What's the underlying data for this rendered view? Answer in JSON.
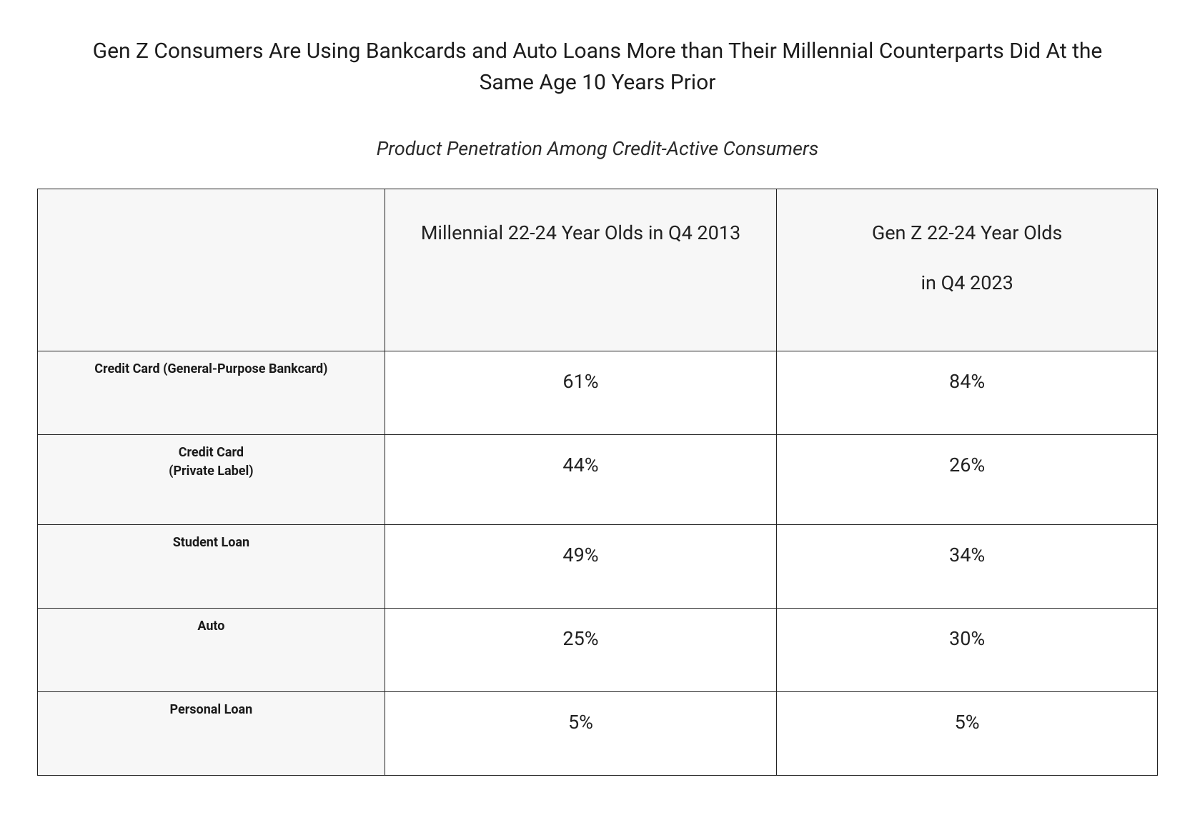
{
  "title": "Gen Z Consumers Are Using Bankcards and Auto Loans More than Their Millennial Counterparts Did At the Same Age 10 Years Prior",
  "subtitle": "Product Penetration Among Credit-Active Consumers",
  "table": {
    "type": "table",
    "background_color": "#ffffff",
    "header_bg": "#f7f7f7",
    "rowlabel_bg": "#f7f7f7",
    "border_color": "#222222",
    "title_fontsize": 30,
    "subtitle_fontsize": 27,
    "header_fontsize": 27,
    "rowlabel_fontsize": 18,
    "cell_fontsize": 27,
    "text_color": "#1f1f1f",
    "column_widths_pct": [
      31,
      35,
      34
    ],
    "columns": [
      "",
      "Millennial 22-24 Year Olds in Q4 2013",
      "Gen Z 22-24 Year Olds\nin Q4 2023"
    ],
    "rows": [
      {
        "label": "Credit Card (General-Purpose Bankcard)",
        "millennial": "61%",
        "genz": "84%"
      },
      {
        "label": "Credit Card\n(Private Label)",
        "millennial": "44%",
        "genz": "26%"
      },
      {
        "label": "Student Loan",
        "millennial": "49%",
        "genz": "34%"
      },
      {
        "label": "Auto",
        "millennial": "25%",
        "genz": "30%"
      },
      {
        "label": "Personal Loan",
        "millennial": "5%",
        "genz": "5%"
      }
    ]
  }
}
